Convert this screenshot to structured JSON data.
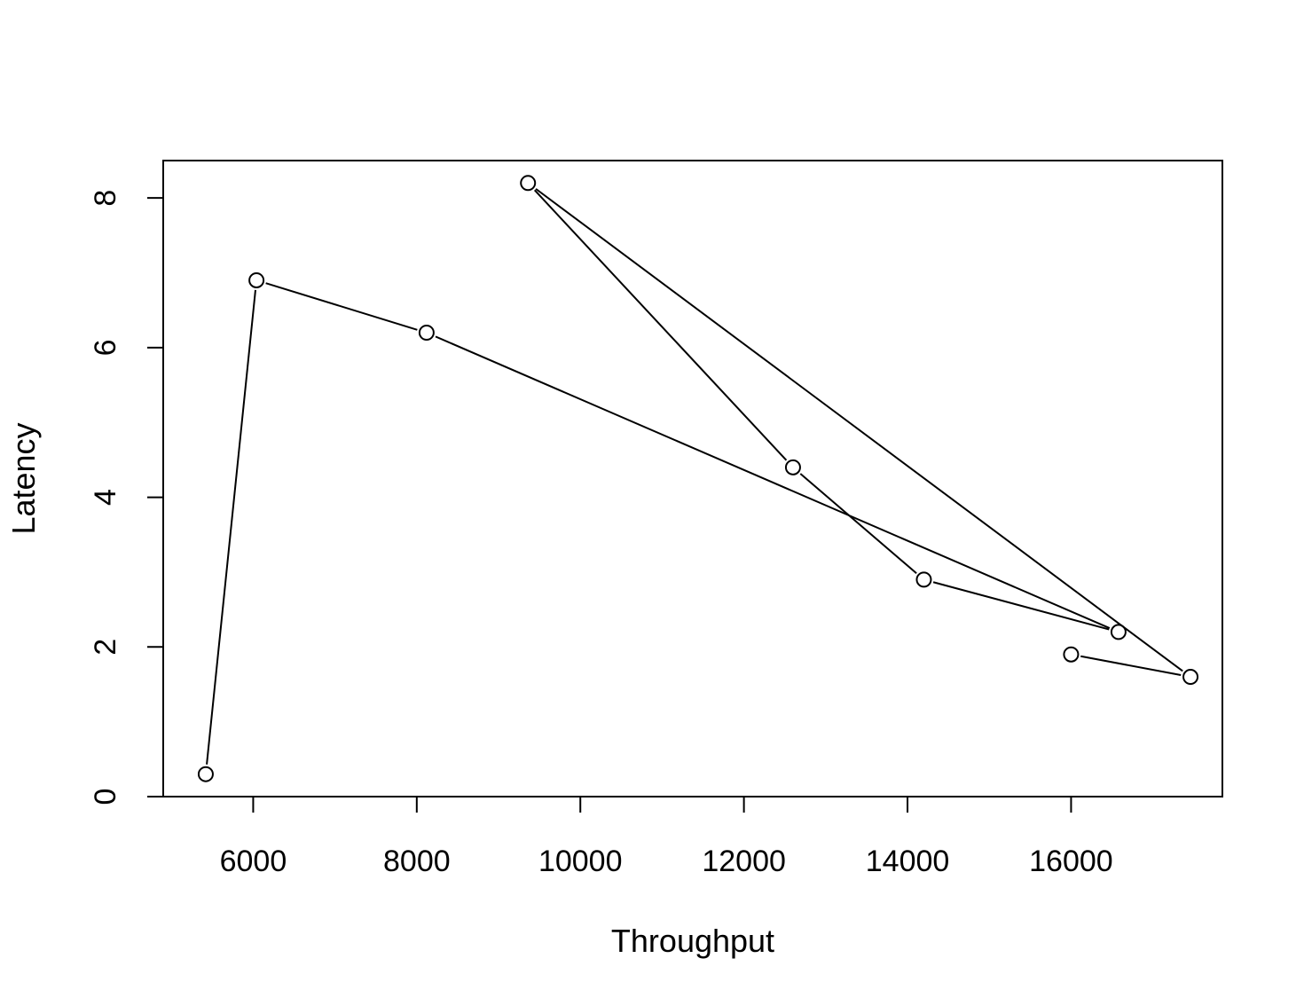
{
  "chart_data": {
    "type": "line",
    "xlabel": "Throughput",
    "ylabel": "Latency",
    "xlim": [
      4900,
      17850
    ],
    "ylim": [
      0,
      8.5
    ],
    "x_ticks": [
      6000,
      8000,
      10000,
      12000,
      14000,
      16000
    ],
    "y_ticks": [
      0,
      2,
      4,
      6,
      8
    ],
    "grid": false,
    "legend": "none",
    "markers": "open-circle",
    "series": [
      {
        "x": [
          5420,
          6040,
          8120,
          16580,
          14200,
          12600,
          9360,
          17460,
          16000
        ],
        "y": [
          0.3,
          6.9,
          6.2,
          2.2,
          2.9,
          4.4,
          8.2,
          1.6,
          1.9
        ]
      }
    ]
  }
}
